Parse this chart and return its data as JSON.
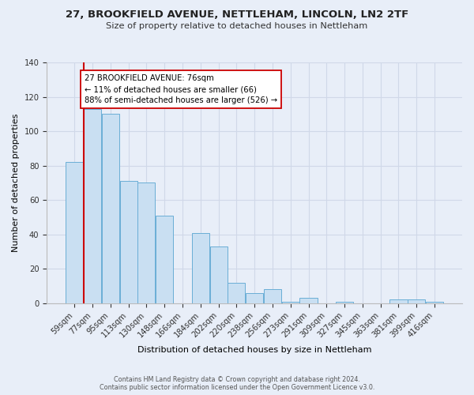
{
  "title": "27, BROOKFIELD AVENUE, NETTLEHAM, LINCOLN, LN2 2TF",
  "subtitle": "Size of property relative to detached houses in Nettleham",
  "xlabel": "Distribution of detached houses by size in Nettleham",
  "ylabel": "Number of detached properties",
  "bar_labels": [
    "59sqm",
    "77sqm",
    "95sqm",
    "113sqm",
    "130sqm",
    "148sqm",
    "166sqm",
    "184sqm",
    "202sqm",
    "220sqm",
    "238sqm",
    "256sqm",
    "273sqm",
    "291sqm",
    "309sqm",
    "327sqm",
    "345sqm",
    "363sqm",
    "381sqm",
    "399sqm",
    "416sqm"
  ],
  "bar_values": [
    82,
    113,
    110,
    71,
    70,
    51,
    0,
    41,
    33,
    12,
    6,
    8,
    1,
    3,
    0,
    1,
    0,
    0,
    2,
    2,
    1
  ],
  "bar_color": "#c9dff2",
  "bar_edge_color": "#6aaed6",
  "background_color": "#e8eef8",
  "grid_color": "#d0d8e8",
  "vline_color": "#cc0000",
  "annotation_text": "27 BROOKFIELD AVENUE: 76sqm\n← 11% of detached houses are smaller (66)\n88% of semi-detached houses are larger (526) →",
  "annotation_box_color": "#ffffff",
  "annotation_box_edge": "#cc0000",
  "ylim": [
    0,
    140
  ],
  "yticks": [
    0,
    20,
    40,
    60,
    80,
    100,
    120,
    140
  ],
  "footer1": "Contains HM Land Registry data © Crown copyright and database right 2024.",
  "footer2": "Contains public sector information licensed under the Open Government Licence v3.0."
}
